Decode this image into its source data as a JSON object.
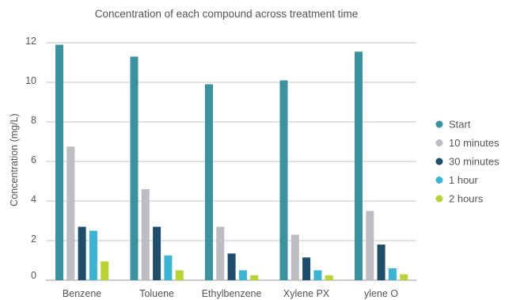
{
  "chart_data": {
    "type": "bar",
    "title": "Concentration of each compound across treatment time",
    "xlabel": "",
    "ylabel": "Concentration (mg/L)",
    "ylim": [
      0,
      12
    ],
    "yticks": [
      0,
      2,
      4,
      6,
      8,
      10,
      12
    ],
    "grid": true,
    "legend_position": "right",
    "categories": [
      "Benzene",
      "Toluene",
      "Ethylbenzene",
      "Xylene PX",
      "ylene O"
    ],
    "series": [
      {
        "name": "Start",
        "color": "#3c93a0",
        "values": [
          11.9,
          11.3,
          9.9,
          10.1,
          11.55
        ]
      },
      {
        "name": "10 minutes",
        "color": "#bcbdc0",
        "values": [
          6.75,
          4.6,
          2.7,
          2.3,
          3.5
        ]
      },
      {
        "name": "30 minutes",
        "color": "#1e4e6c",
        "values": [
          2.7,
          2.7,
          1.35,
          1.15,
          1.8
        ]
      },
      {
        "name": "1 hour",
        "color": "#3ab5d6",
        "values": [
          2.5,
          1.25,
          0.5,
          0.5,
          0.6
        ]
      },
      {
        "name": "2 hours",
        "color": "#b9d234",
        "values": [
          0.95,
          0.5,
          0.25,
          0.25,
          0.3
        ]
      }
    ]
  }
}
